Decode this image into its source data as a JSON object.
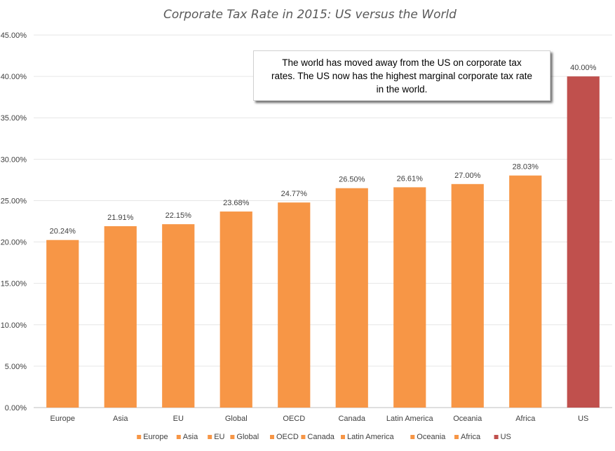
{
  "chart_data": {
    "type": "bar",
    "title": "Corporate Tax Rate in 2015: US versus the World",
    "xlabel": "",
    "ylabel": "",
    "categories": [
      "Europe",
      "Asia",
      "EU",
      "Global",
      "OECD",
      "Canada",
      "Latin America",
      "Oceania",
      "Africa",
      "US"
    ],
    "values": [
      20.24,
      21.91,
      22.15,
      23.68,
      24.77,
      26.5,
      26.61,
      27.0,
      28.03,
      40.0
    ],
    "data_labels": [
      "20.24%",
      "21.91%",
      "22.15%",
      "23.68%",
      "24.77%",
      "26.50%",
      "26.61%",
      "27.00%",
      "28.03%",
      "40.00%"
    ],
    "bar_colors": [
      "#F79646",
      "#F79646",
      "#F79646",
      "#F79646",
      "#F79646",
      "#F79646",
      "#F79646",
      "#F79646",
      "#F79646",
      "#C0504D"
    ],
    "ylim": [
      0,
      45
    ],
    "yticks": [
      0,
      5,
      10,
      15,
      20,
      25,
      30,
      35,
      40,
      45
    ],
    "ytick_labels": [
      "0.00%",
      "5.00%",
      "10.00%",
      "15.00%",
      "20.00%",
      "25.00%",
      "30.00%",
      "35.00%",
      "40.00%",
      "45.00%"
    ],
    "grid": true,
    "legend": {
      "placement": "bottom",
      "entries": [
        "Europe",
        "Asia",
        "EU",
        "Global",
        "OECD",
        "Canada",
        "Latin America",
        "Oceania",
        "Africa",
        "US"
      ]
    },
    "annotation": "The world has moved away from the US on corporate tax rates. The US now has the highest marginal corporate tax rate in the world."
  }
}
